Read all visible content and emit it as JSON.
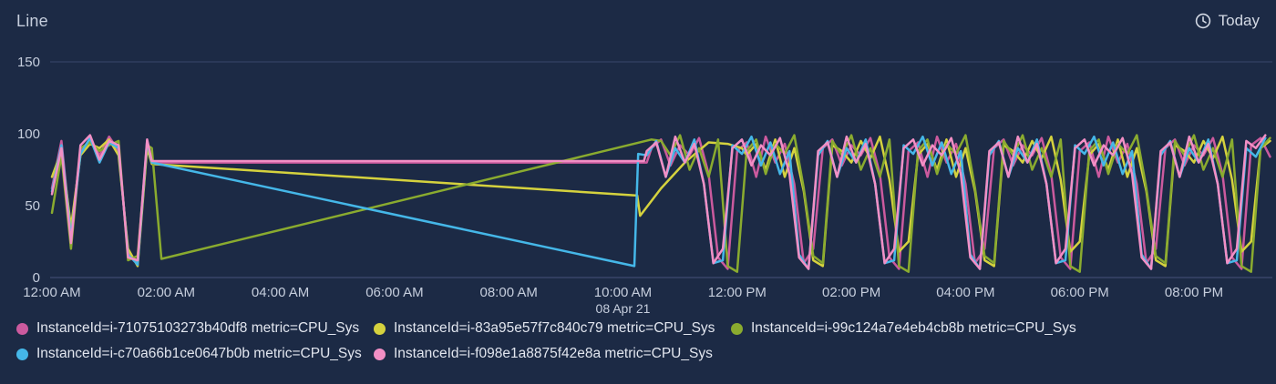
{
  "header": {
    "title": "Line",
    "time_range_label": "Today"
  },
  "chart_data": {
    "type": "line",
    "title": "Line",
    "x_axis": {
      "unit": "minutes_since_midnight",
      "domain": [
        0,
        1280
      ],
      "ticks": [
        {
          "t": 0,
          "label": "12:00 AM"
        },
        {
          "t": 120,
          "label": "02:00 AM"
        },
        {
          "t": 240,
          "label": "04:00 AM"
        },
        {
          "t": 360,
          "label": "06:00 AM"
        },
        {
          "t": 480,
          "label": "08:00 AM"
        },
        {
          "t": 600,
          "label": "10:00 AM",
          "sublabel": "08 Apr 21"
        },
        {
          "t": 720,
          "label": "12:00 PM"
        },
        {
          "t": 840,
          "label": "02:00 PM"
        },
        {
          "t": 960,
          "label": "04:00 PM"
        },
        {
          "t": 1080,
          "label": "06:00 PM"
        },
        {
          "t": 1200,
          "label": "08:00 PM"
        }
      ]
    },
    "y_axis": {
      "domain": [
        0,
        150
      ],
      "ticks": [
        0,
        50,
        100,
        150
      ],
      "gridlines_at": [
        0,
        150
      ]
    },
    "legend_position": "bottom",
    "series": [
      {
        "name": "InstanceId=i-71075103273b40df8 metric=CPU_Sys",
        "color": "#cb5a9e",
        "points": [
          [
            0,
            62
          ],
          [
            10,
            95
          ],
          [
            20,
            30
          ],
          [
            30,
            88
          ],
          [
            40,
            96
          ],
          [
            50,
            85
          ],
          [
            60,
            98
          ],
          [
            70,
            88
          ],
          [
            80,
            18
          ],
          [
            90,
            10
          ],
          [
            100,
            93
          ],
          [
            105,
            80
          ],
          [
            625,
            80
          ]
        ],
        "tail": {
          "start": 630,
          "step": 10,
          "values": [
            90,
            96,
            78,
            92,
            85,
            97,
            72,
            14,
            6,
            88,
            94,
            70,
            98,
            80,
            93,
            65,
            10,
            20,
            90,
            96,
            78,
            92,
            85,
            97,
            72,
            14,
            6,
            88,
            94,
            70,
            98,
            80,
            93,
            65,
            10,
            20,
            90,
            96,
            78,
            92,
            85,
            97,
            72,
            14,
            6,
            88,
            94,
            70,
            98,
            80,
            93,
            65,
            10,
            20,
            90,
            96,
            78,
            92,
            85,
            97,
            72,
            14,
            6,
            92,
            97,
            84
          ]
        }
      },
      {
        "name": "InstanceId=i-83a95e57f7c840c79 metric=CPU_Sys",
        "color": "#d5d23e",
        "points": [
          [
            0,
            70
          ],
          [
            10,
            88
          ],
          [
            20,
            35
          ],
          [
            30,
            85
          ],
          [
            40,
            93
          ],
          [
            50,
            90
          ],
          [
            60,
            96
          ],
          [
            70,
            85
          ],
          [
            80,
            20
          ],
          [
            90,
            8
          ],
          [
            100,
            90
          ],
          [
            105,
            79
          ],
          [
            615,
            57
          ],
          [
            618,
            43
          ],
          [
            640,
            62
          ],
          [
            665,
            80
          ],
          [
            690,
            94
          ],
          [
            710,
            93
          ],
          [
            725,
            90
          ]
        ],
        "tail": {
          "start": 730,
          "step": 10,
          "values": [
            85,
            93,
            75,
            96,
            70,
            90,
            60,
            12,
            8,
            92,
            88,
            80,
            95,
            83,
            98,
            68,
            18,
            25,
            85,
            93,
            75,
            96,
            70,
            90,
            60,
            12,
            8,
            92,
            88,
            80,
            95,
            83,
            98,
            68,
            18,
            25,
            85,
            93,
            75,
            96,
            70,
            90,
            60,
            12,
            8,
            92,
            88,
            80,
            95,
            83,
            98,
            68,
            18,
            25,
            90,
            95
          ]
        }
      },
      {
        "name": "InstanceId=i-99c124a7e4eb4cb8b metric=CPU_Sys",
        "color": "#8aab2f",
        "points": [
          [
            0,
            45
          ],
          [
            10,
            85
          ],
          [
            20,
            20
          ],
          [
            30,
            90
          ],
          [
            40,
            94
          ],
          [
            50,
            88
          ],
          [
            60,
            92
          ],
          [
            70,
            95
          ],
          [
            80,
            12
          ],
          [
            90,
            15
          ],
          [
            100,
            92
          ],
          [
            105,
            90
          ],
          [
            115,
            13
          ],
          [
            630,
            96
          ]
        ],
        "tail": {
          "start": 640,
          "step": 10,
          "values": [
            95,
            85,
            99,
            75,
            90,
            70,
            96,
            8,
            4,
            88,
            96,
            72,
            93,
            86,
            99,
            62,
            15,
            10,
            95,
            85,
            99,
            75,
            90,
            70,
            96,
            8,
            4,
            88,
            96,
            72,
            93,
            86,
            99,
            62,
            15,
            10,
            95,
            85,
            99,
            75,
            90,
            70,
            96,
            8,
            4,
            88,
            96,
            72,
            93,
            86,
            99,
            62,
            15,
            10,
            95,
            85,
            99,
            75,
            90,
            70,
            96,
            8,
            4,
            90,
            97
          ]
        }
      },
      {
        "name": "InstanceId=i-c70a66b1ce0647b0b metric=CPU_Sys",
        "color": "#45b7e8",
        "points": [
          [
            0,
            60
          ],
          [
            10,
            92
          ],
          [
            20,
            28
          ],
          [
            30,
            86
          ],
          [
            40,
            97
          ],
          [
            50,
            80
          ],
          [
            60,
            94
          ],
          [
            70,
            90
          ],
          [
            80,
            16
          ],
          [
            90,
            9
          ],
          [
            100,
            95
          ],
          [
            105,
            80
          ],
          [
            612,
            8
          ],
          [
            616,
            86
          ]
        ],
        "tail": {
          "start": 625,
          "step": 10,
          "values": [
            85,
            95,
            70,
            90,
            80,
            96,
            65,
            10,
            12,
            92,
            86,
            98,
            78,
            94,
            72,
            88,
            16,
            6,
            85,
            95,
            70,
            90,
            80,
            96,
            65,
            10,
            12,
            92,
            86,
            98,
            78,
            94,
            72,
            88,
            16,
            6,
            85,
            95,
            70,
            90,
            80,
            96,
            65,
            10,
            12,
            92,
            86,
            98,
            78,
            94,
            72,
            88,
            16,
            6,
            85,
            95,
            70,
            90,
            80,
            96,
            65,
            10,
            12,
            90,
            84,
            97
          ]
        }
      },
      {
        "name": "InstanceId=i-f098e1a8875f42e8a metric=CPU_Sys",
        "color": "#f28fc5",
        "points": [
          [
            0,
            58
          ],
          [
            10,
            90
          ],
          [
            20,
            24
          ],
          [
            30,
            92
          ],
          [
            40,
            99
          ],
          [
            50,
            82
          ],
          [
            60,
            95
          ],
          [
            70,
            92
          ],
          [
            80,
            14
          ],
          [
            90,
            12
          ],
          [
            100,
            96
          ],
          [
            105,
            81
          ],
          [
            622,
            81
          ]
        ],
        "tail": {
          "start": 625,
          "step": 10,
          "values": [
            88,
            94,
            70,
            98,
            80,
            93,
            65,
            10,
            20,
            90,
            96,
            78,
            92,
            85,
            97,
            72,
            14,
            6,
            88,
            94,
            70,
            98,
            80,
            93,
            65,
            10,
            20,
            90,
            96,
            78,
            92,
            85,
            97,
            72,
            14,
            6,
            88,
            94,
            70,
            98,
            80,
            93,
            65,
            10,
            20,
            90,
            96,
            78,
            92,
            85,
            97,
            72,
            14,
            6,
            88,
            94,
            70,
            98,
            80,
            93,
            65,
            10,
            20,
            95,
            90,
            99
          ]
        }
      }
    ]
  }
}
